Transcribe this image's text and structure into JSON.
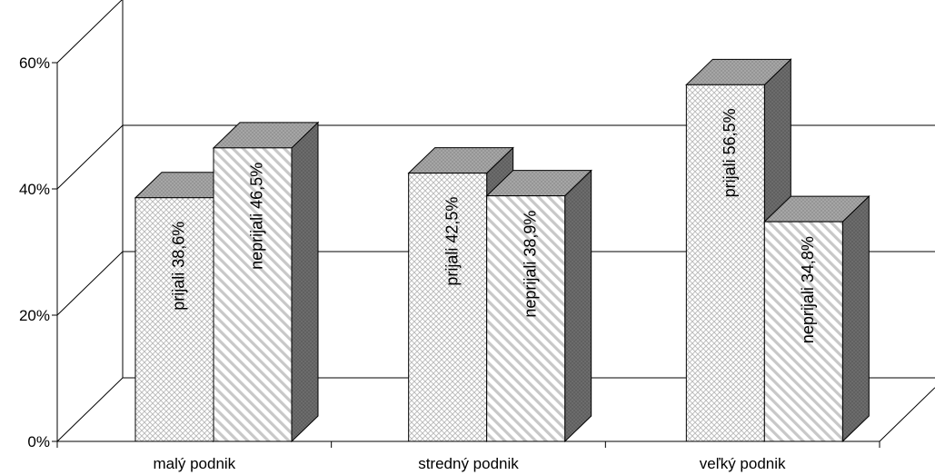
{
  "chart_data": {
    "type": "bar",
    "categories": [
      "malý podnik",
      "stredný podnik",
      "veľký podnik"
    ],
    "series": [
      {
        "name": "prijali",
        "values": [
          38.6,
          42.5,
          56.5
        ]
      },
      {
        "name": "neprijali",
        "values": [
          46.5,
          38.9,
          34.8
        ]
      }
    ],
    "data_labels": [
      [
        "prijali  38,6%",
        "neprijali  46,5%"
      ],
      [
        "prijali  42,5%",
        "neprijali  38,9%"
      ],
      [
        "prijali  56,5%",
        "neprijali  34,8%"
      ]
    ],
    "y_ticks": [
      0,
      20,
      40,
      60
    ],
    "y_tick_labels": [
      "0%",
      "20%",
      "40%",
      "60%"
    ],
    "ylim": [
      0,
      60
    ],
    "title": "",
    "xlabel": "",
    "ylabel": "",
    "grid": true,
    "style": "3d",
    "colors": {
      "front": "#ffffff",
      "pattern_dots": "#b8b8b8",
      "pattern_hatch": "#c8c8c8",
      "top": "#a8a8a8",
      "side": "#6e6e6e",
      "gridline": "#000000",
      "axis": "#000000"
    }
  }
}
